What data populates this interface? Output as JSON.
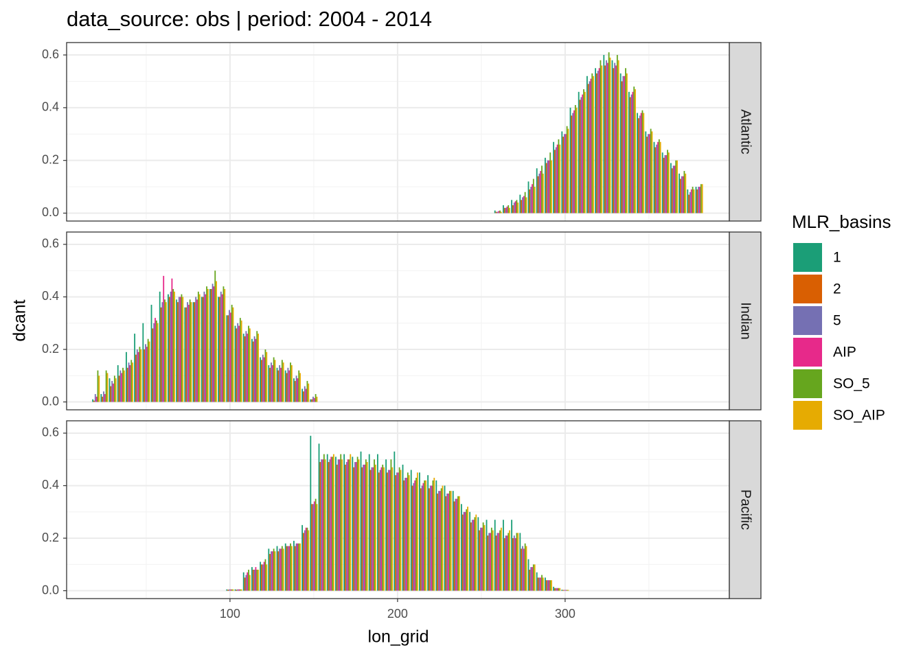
{
  "chart_data": {
    "type": "bar",
    "title": "data_source: obs | period: 2004 - 2014",
    "x_label": "lon_grid",
    "y_label": "dcant",
    "legend_title": "MLR_basins",
    "xlim": [
      2.5,
      398
    ],
    "xticks": [
      100,
      200,
      300
    ],
    "xminorticks": [
      50,
      150,
      250,
      350
    ],
    "ylim": [
      -0.03,
      0.647
    ],
    "yticks": [
      {
        "value": 0,
        "label": "0.0"
      },
      0.2,
      0.4,
      0.6
    ],
    "yminorticks": [
      0.1,
      0.3,
      0.5
    ],
    "grid": true,
    "series": [
      {
        "name": "1",
        "color": "#1b9e77"
      },
      {
        "name": "2",
        "color": "#d95f02"
      },
      {
        "name": "5",
        "color": "#7570b3"
      },
      {
        "name": "AIP",
        "color": "#e7298a"
      },
      {
        "name": "SO_5",
        "color": "#66a61e"
      },
      {
        "name": "SO_AIP",
        "color": "#e6ab02"
      }
    ],
    "facets": [
      {
        "label": "Atlantic",
        "x": [
          260,
          265,
          270,
          275,
          280,
          285,
          290,
          295,
          300,
          305,
          310,
          315,
          320,
          325,
          330,
          335,
          340,
          345,
          350,
          355,
          360,
          365,
          370,
          375,
          380
        ],
        "series": [
          {
            "values": [
              0.01,
              0.03,
              0.05,
              0.07,
              0.12,
              0.17,
              0.21,
              0.27,
              0.31,
              0.4,
              0.46,
              0.52,
              0.55,
              0.6,
              0.58,
              0.53,
              0.46,
              0.38,
              0.31,
              0.27,
              0.23,
              0.19,
              0.15,
              0.09,
              0.1
            ]
          },
          {
            "values": [
              0.005,
              0.02,
              0.03,
              0.05,
              0.09,
              0.14,
              0.19,
              0.24,
              0.29,
              0.37,
              0.43,
              0.49,
              0.53,
              0.56,
              0.55,
              0.5,
              0.44,
              0.36,
              0.29,
              0.25,
              0.21,
              0.17,
              0.13,
              0.07,
              0.09
            ]
          },
          {
            "values": [
              0.005,
              0.02,
              0.04,
              0.06,
              0.1,
              0.15,
              0.2,
              0.25,
              0.3,
              0.38,
              0.44,
              0.5,
              0.54,
              0.58,
              0.57,
              0.52,
              0.45,
              0.37,
              0.3,
              0.26,
              0.22,
              0.18,
              0.14,
              0.08,
              0.1
            ]
          },
          {
            "values": [
              0.008,
              0.025,
              0.045,
              0.065,
              0.11,
              0.16,
              0.2,
              0.26,
              0.3,
              0.39,
              0.45,
              0.51,
              0.55,
              0.57,
              0.56,
              0.52,
              0.46,
              0.38,
              0.3,
              0.27,
              0.22,
              0.18,
              0.14,
              0.09,
              0.1
            ]
          },
          {
            "values": [
              0.01,
              0.03,
              0.05,
              0.08,
              0.13,
              0.18,
              0.23,
              0.28,
              0.33,
              0.41,
              0.47,
              0.53,
              0.58,
              0.61,
              0.6,
              0.55,
              0.48,
              0.39,
              0.32,
              0.28,
              0.24,
              0.2,
              0.16,
              0.1,
              0.11
            ]
          },
          {
            "values": [
              0.005,
              0.02,
              0.04,
              0.06,
              0.1,
              0.15,
              0.2,
              0.26,
              0.32,
              0.4,
              0.46,
              0.52,
              0.56,
              0.59,
              0.58,
              0.53,
              0.47,
              0.38,
              0.31,
              0.27,
              0.23,
              0.2,
              0.15,
              0.09,
              0.11
            ]
          }
        ]
      },
      {
        "label": "Indian",
        "x": [
          20,
          25,
          30,
          35,
          40,
          45,
          50,
          55,
          60,
          65,
          70,
          75,
          80,
          85,
          90,
          95,
          100,
          105,
          110,
          115,
          120,
          125,
          130,
          135,
          140,
          145,
          150
        ],
        "series": [
          {
            "values": [
              0.01,
              0.03,
              0.09,
              0.14,
              0.19,
              0.26,
              0.3,
              0.37,
              0.42,
              0.41,
              0.39,
              0.36,
              0.38,
              0.4,
              0.43,
              0.4,
              0.33,
              0.29,
              0.26,
              0.24,
              0.17,
              0.14,
              0.13,
              0.12,
              0.09,
              0.05,
              0.01
            ]
          },
          {
            "values": [
              0.005,
              0.02,
              0.06,
              0.1,
              0.13,
              0.18,
              0.2,
              0.28,
              0.36,
              0.4,
              0.38,
              0.36,
              0.38,
              0.4,
              0.43,
              0.4,
              0.33,
              0.28,
              0.25,
              0.23,
              0.16,
              0.13,
              0.12,
              0.11,
              0.08,
              0.04,
              0.01
            ]
          },
          {
            "values": [
              0.03,
              0.04,
              0.08,
              0.12,
              0.15,
              0.2,
              0.22,
              0.3,
              0.38,
              0.42,
              0.4,
              0.38,
              0.4,
              0.42,
              0.45,
              0.42,
              0.35,
              0.3,
              0.27,
              0.25,
              0.18,
              0.15,
              0.14,
              0.13,
              0.1,
              0.06,
              0.02
            ]
          },
          {
            "values": [
              0.02,
              0.03,
              0.07,
              0.11,
              0.14,
              0.19,
              0.21,
              0.32,
              0.48,
              0.47,
              0.4,
              0.37,
              0.39,
              0.41,
              0.44,
              0.41,
              0.34,
              0.29,
              0.26,
              0.24,
              0.17,
              0.14,
              0.13,
              0.12,
              0.09,
              0.05,
              0.015
            ]
          },
          {
            "values": [
              0.12,
              0.12,
              0.1,
              0.13,
              0.16,
              0.21,
              0.24,
              0.31,
              0.39,
              0.43,
              0.41,
              0.39,
              0.42,
              0.44,
              0.5,
              0.44,
              0.37,
              0.32,
              0.29,
              0.27,
              0.2,
              0.17,
              0.16,
              0.15,
              0.12,
              0.08,
              0.03
            ]
          },
          {
            "values": [
              0.1,
              0.11,
              0.09,
              0.12,
              0.15,
              0.2,
              0.23,
              0.3,
              0.38,
              0.42,
              0.4,
              0.38,
              0.41,
              0.43,
              0.46,
              0.43,
              0.36,
              0.31,
              0.28,
              0.26,
              0.19,
              0.16,
              0.15,
              0.14,
              0.11,
              0.07,
              0.02
            ]
          }
        ]
      },
      {
        "label": "Pacific",
        "x": [
          100,
          105,
          110,
          115,
          120,
          125,
          130,
          135,
          140,
          145,
          150,
          155,
          160,
          165,
          170,
          175,
          180,
          185,
          190,
          195,
          200,
          205,
          210,
          215,
          220,
          225,
          230,
          235,
          240,
          245,
          250,
          255,
          260,
          265,
          270,
          275,
          280,
          285,
          290,
          295,
          300
        ],
        "series": [
          {
            "values": [
              0.005,
              0.005,
              0.07,
              0.09,
              0.11,
              0.16,
              0.17,
              0.18,
              0.19,
              0.25,
              0.59,
              0.56,
              0.52,
              0.51,
              0.52,
              0.51,
              0.53,
              0.52,
              0.52,
              0.5,
              0.53,
              0.48,
              0.46,
              0.45,
              0.44,
              0.42,
              0.4,
              0.38,
              0.33,
              0.3,
              0.28,
              0.27,
              0.27,
              0.27,
              0.27,
              0.22,
              0.12,
              0.07,
              0.05,
              0.015,
              0.004
            ]
          },
          {
            "values": [
              0.004,
              0.004,
              0.05,
              0.08,
              0.1,
              0.14,
              0.15,
              0.17,
              0.17,
              0.22,
              0.33,
              0.49,
              0.49,
              0.48,
              0.48,
              0.47,
              0.47,
              0.46,
              0.45,
              0.45,
              0.44,
              0.42,
              0.4,
              0.39,
              0.39,
              0.37,
              0.36,
              0.34,
              0.29,
              0.26,
              0.23,
              0.21,
              0.21,
              0.2,
              0.2,
              0.16,
              0.08,
              0.05,
              0.04,
              0.01,
              0.003
            ]
          },
          {
            "values": [
              0.005,
              0.005,
              0.06,
              0.08,
              0.1,
              0.15,
              0.16,
              0.17,
              0.18,
              0.23,
              0.33,
              0.5,
              0.5,
              0.5,
              0.49,
              0.49,
              0.48,
              0.47,
              0.46,
              0.46,
              0.45,
              0.43,
              0.41,
              0.4,
              0.4,
              0.38,
              0.37,
              0.35,
              0.3,
              0.27,
              0.24,
              0.22,
              0.22,
              0.21,
              0.21,
              0.17,
              0.09,
              0.05,
              0.04,
              0.01,
              0.003
            ]
          },
          {
            "values": [
              0.005,
              0.005,
              0.07,
              0.09,
              0.11,
              0.15,
              0.16,
              0.17,
              0.18,
              0.24,
              0.34,
              0.5,
              0.51,
              0.5,
              0.5,
              0.49,
              0.48,
              0.47,
              0.47,
              0.46,
              0.45,
              0.43,
              0.42,
              0.41,
              0.4,
              0.38,
              0.37,
              0.35,
              0.3,
              0.27,
              0.24,
              0.22,
              0.22,
              0.21,
              0.2,
              0.16,
              0.09,
              0.05,
              0.04,
              0.01,
              0.003
            ]
          },
          {
            "values": [
              0.005,
              0.005,
              0.08,
              0.08,
              0.12,
              0.16,
              0.17,
              0.18,
              0.18,
              0.24,
              0.35,
              0.52,
              0.51,
              0.52,
              0.5,
              0.51,
              0.5,
              0.5,
              0.48,
              0.5,
              0.47,
              0.45,
              0.43,
              0.42,
              0.42,
              0.39,
              0.38,
              0.36,
              0.31,
              0.28,
              0.26,
              0.24,
              0.23,
              0.22,
              0.22,
              0.18,
              0.1,
              0.06,
              0.04,
              0.01,
              0.003
            ]
          },
          {
            "values": [
              0.005,
              0.005,
              0.06,
              0.08,
              0.1,
              0.15,
              0.16,
              0.17,
              0.18,
              0.23,
              0.33,
              0.5,
              0.52,
              0.5,
              0.52,
              0.5,
              0.49,
              0.48,
              0.47,
              0.47,
              0.46,
              0.44,
              0.45,
              0.42,
              0.43,
              0.4,
              0.38,
              0.36,
              0.32,
              0.29,
              0.25,
              0.23,
              0.24,
              0.23,
              0.22,
              0.17,
              0.1,
              0.05,
              0.04,
              0.01,
              0.003
            ]
          }
        ]
      }
    ]
  }
}
